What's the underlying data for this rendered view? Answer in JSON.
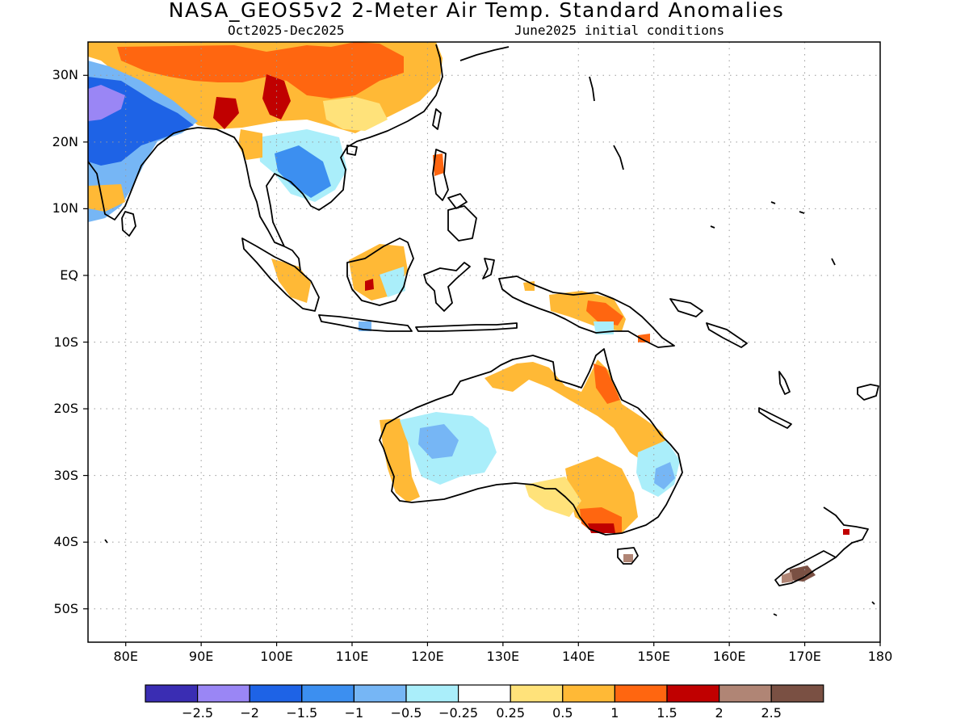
{
  "title": "NASA_GEOS5v2 2-Meter Air Temp. Standard Anomalies",
  "subtitle_left": "Oct2025-Dec2025",
  "subtitle_right": "June2025 initial conditions",
  "map": {
    "lon_range": [
      75,
      180
    ],
    "lat_range": [
      -55,
      35
    ],
    "lat_ticks": [
      {
        "value": 30,
        "label": "30N"
      },
      {
        "value": 20,
        "label": "20N"
      },
      {
        "value": 10,
        "label": "10N"
      },
      {
        "value": 0,
        "label": "EQ"
      },
      {
        "value": -10,
        "label": "10S"
      },
      {
        "value": -20,
        "label": "20S"
      },
      {
        "value": -30,
        "label": "30S"
      },
      {
        "value": -40,
        "label": "40S"
      },
      {
        "value": -50,
        "label": "50S"
      }
    ],
    "lon_ticks": [
      {
        "value": 80,
        "label": "80E"
      },
      {
        "value": 90,
        "label": "90E"
      },
      {
        "value": 100,
        "label": "100E"
      },
      {
        "value": 110,
        "label": "110E"
      },
      {
        "value": 120,
        "label": "120E"
      },
      {
        "value": 130,
        "label": "130E"
      },
      {
        "value": 140,
        "label": "140E"
      },
      {
        "value": 150,
        "label": "150E"
      },
      {
        "value": 160,
        "label": "160E"
      },
      {
        "value": 170,
        "label": "170E"
      },
      {
        "value": 180,
        "label": "180"
      }
    ],
    "gridlines": "dotted",
    "coastline_color": "#000000"
  },
  "colorbar": {
    "colors": [
      "#3a2db3",
      "#9a86f5",
      "#1e63e6",
      "#3c8ff0",
      "#76b6f5",
      "#aaeefa",
      "#ffffff",
      "#ffe27a",
      "#ffb936",
      "#ff6610",
      "#c00000",
      "#b08575",
      "#7a5043"
    ],
    "labels": [
      "-2.5",
      "-2",
      "-1.5",
      "-1",
      "-0.5",
      "-0.25",
      "0.25",
      "0.5",
      "1",
      "1.5",
      "2",
      "2.5"
    ]
  },
  "land_colors": {
    "land_neutral": "#ffffff",
    "warm_light": "#ffe27a",
    "warm_mid": "#ffb936",
    "warm_high": "#ff6610",
    "warm_extreme": "#c00000",
    "cool_light": "#aaeefa",
    "cool_mid": "#76b6f5",
    "cool_high": "#3c8ff0",
    "cool_strong": "#1e63e6",
    "cool_extreme": "#9a86f5",
    "brown_light": "#b08575",
    "brown_dark": "#7a5043"
  }
}
